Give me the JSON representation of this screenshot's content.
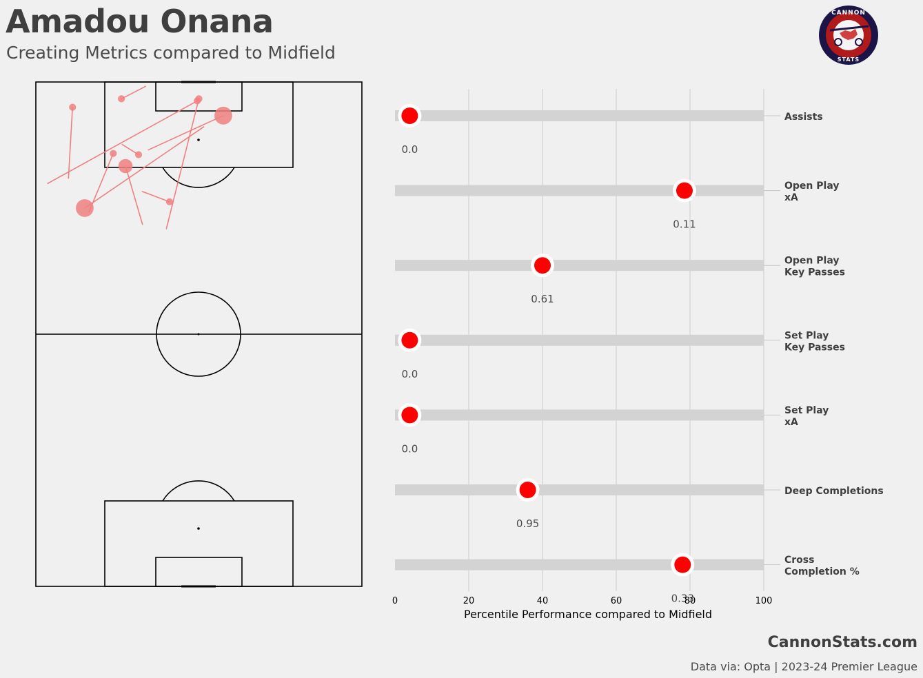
{
  "header": {
    "title": "Amadou Onana",
    "subtitle": "Creating Metrics compared to Midfield"
  },
  "logo": {
    "top_text": "CANNON",
    "bottom_text": "STATS"
  },
  "footer": {
    "site": "CannonStats.com",
    "source": "Data via: Opta | 2023-24 Premier League"
  },
  "colors": {
    "background": "#f0f0f0",
    "dot": "#ff0000",
    "pass": "#f08080",
    "track": "#d3d3d3",
    "text": "#3f3f3f"
  },
  "chart_data": [
    {
      "type": "scatter",
      "description_type": "pitch-pass-map",
      "pitch_length": 120,
      "pitch_width": 80,
      "passes": [
        {
          "start": [
            39.6,
            4.5
          ],
          "end": [
            2.8,
            24.2
          ],
          "size": 1
        },
        {
          "start": [
            9,
            6
          ],
          "end": [
            8,
            23
          ],
          "size": 1
        },
        {
          "start": [
            21,
            4
          ],
          "end": [
            27,
            1
          ],
          "size": 1
        },
        {
          "start": [
            19,
            17
          ],
          "end": [
            13,
            31
          ],
          "size": 1
        },
        {
          "start": [
            25.2,
            17.3
          ],
          "end": [
            21.1,
            14.8
          ],
          "size": 1
        },
        {
          "start": [
            32.8,
            28.5
          ],
          "end": [
            26,
            26
          ],
          "size": 1
        },
        {
          "start": [
            40,
            4
          ],
          "end": [
            32,
            35
          ],
          "size": 1
        },
        {
          "start": [
            46,
            8
          ],
          "end": [
            27.5,
            16.2
          ],
          "size": 4
        },
        {
          "start": [
            22,
            20
          ],
          "end": [
            26.2,
            34
          ],
          "size": 3
        },
        {
          "start": [
            12,
            30
          ],
          "end": [
            41.3,
            10.6
          ],
          "size": 4
        }
      ]
    },
    {
      "type": "scatter",
      "xlabel": "Percentile Performance compared to Midfield",
      "xlim": [
        0,
        100
      ],
      "xticks": [
        "0",
        "20",
        "40",
        "60",
        "80",
        "100"
      ],
      "metrics": [
        {
          "label": [
            "Assists"
          ],
          "percentile": 4,
          "value": "0.0"
        },
        {
          "label": [
            "Open Play",
            "xA"
          ],
          "percentile": 78.5,
          "value": "0.11"
        },
        {
          "label": [
            "Open Play",
            "Key Passes"
          ],
          "percentile": 40,
          "value": "0.61"
        },
        {
          "label": [
            "Set Play",
            "Key Passes"
          ],
          "percentile": 4,
          "value": "0.0"
        },
        {
          "label": [
            "Set Play",
            "xA"
          ],
          "percentile": 4,
          "value": "0.0"
        },
        {
          "label": [
            "Deep Completions"
          ],
          "percentile": 36,
          "value": "0.95"
        },
        {
          "label": [
            "Cross",
            "Completion %"
          ],
          "percentile": 78,
          "value": "0.33"
        }
      ]
    }
  ]
}
